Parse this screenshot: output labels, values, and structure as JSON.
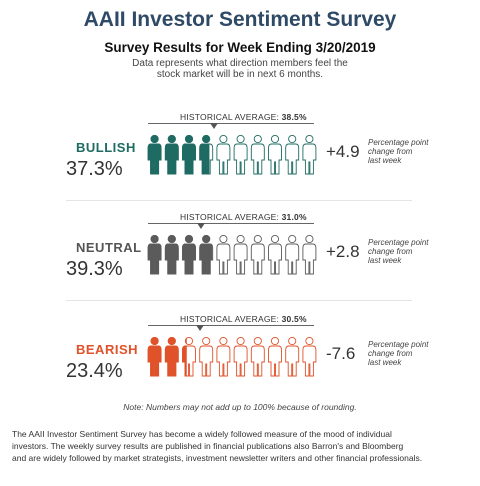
{
  "title": "AAII Investor Sentiment Survey",
  "subtitle": "Survey Results for Week Ending 3/20/2019",
  "description_line1": "Data represents what direction members feel the",
  "description_line2": "stock market will be in next 6 months.",
  "sections": [
    {
      "label": "BULLISH",
      "percent": "37.3%",
      "hist_prefix": "HISTORICAL AVERAGE:",
      "hist_value": "38.5%",
      "hist_average": 38.5,
      "current_value": 37.3,
      "change": "+4.9",
      "change_note_1": "Percentage point",
      "change_note_2": "change from",
      "change_note_3": "last week",
      "color": "#1e6b63"
    },
    {
      "label": "NEUTRAL",
      "percent": "39.3%",
      "hist_prefix": "HISTORICAL AVERAGE:",
      "hist_value": "31.0%",
      "hist_average": 31.0,
      "current_value": 39.3,
      "change": "+2.8",
      "change_note_1": "Percentage point",
      "change_note_2": "change from",
      "change_note_3": "last week",
      "color": "#5b5b5b"
    },
    {
      "label": "BEARISH",
      "percent": "23.4%",
      "hist_prefix": "HISTORICAL AVERAGE:",
      "hist_value": "30.5%",
      "hist_average": 30.5,
      "current_value": 23.4,
      "change": "-7.6",
      "change_note_1": "Percentage point",
      "change_note_2": "change from",
      "change_note_3": "last week",
      "color": "#e0522a"
    }
  ],
  "note": "Note: Numbers may not add up to 100% because of rounding.",
  "footer_line1": "The AAII Investor Sentiment Survey has become a widely followed measure of the mood of individual",
  "footer_line2": "investors. The weekly survey results are published in financial publications also Barron's and Bloomberg",
  "footer_line3": "and are widely followed by market strategists, investment newsletter writers and other financial professionals."
}
